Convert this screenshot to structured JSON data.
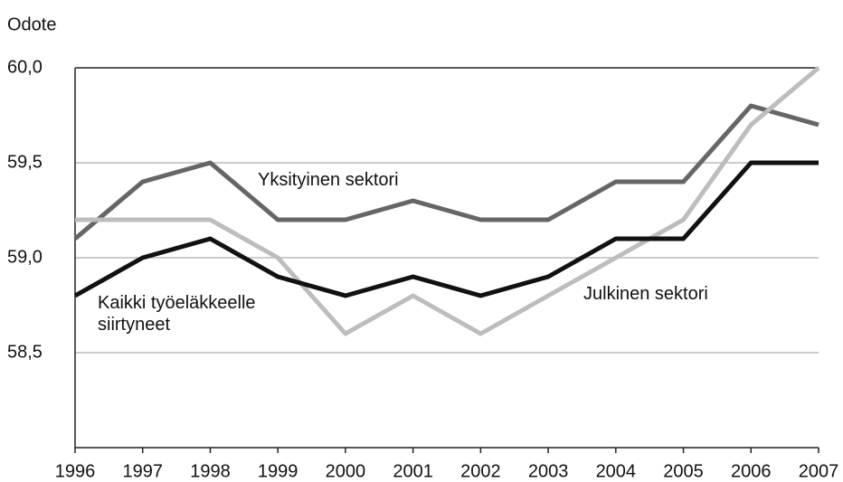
{
  "chart_data": {
    "type": "line",
    "y_label": "Odote",
    "categories": [
      "1996",
      "1997",
      "1998",
      "1999",
      "2000",
      "2001",
      "2002",
      "2003",
      "2004",
      "2005",
      "2006",
      "2007"
    ],
    "series": [
      {
        "name": "Yksityinen sektori",
        "color": "#666666",
        "values": [
          59.1,
          59.4,
          59.5,
          59.2,
          59.2,
          59.3,
          59.2,
          59.2,
          59.4,
          59.4,
          59.8,
          59.7
        ]
      },
      {
        "name": "Julkinen sektori",
        "color": "#bdbdbd",
        "values": [
          59.2,
          59.2,
          59.2,
          59.0,
          58.6,
          58.8,
          58.6,
          58.8,
          59.0,
          59.2,
          59.7,
          60.0
        ]
      },
      {
        "name": "Kaikki työeläkkeelle siirtyneet",
        "color": "#111111",
        "values": [
          58.8,
          59.0,
          59.1,
          58.9,
          58.8,
          58.9,
          58.8,
          58.9,
          59.1,
          59.1,
          59.5,
          59.5
        ]
      }
    ],
    "ylim": [
      58,
      60
    ],
    "yticks": [
      {
        "value": 58.5,
        "label": "58,5"
      },
      {
        "value": 59,
        "label": "59,0"
      },
      {
        "value": 59.5,
        "label": "59,5"
      },
      {
        "value": 60,
        "label": "60,0"
      }
    ],
    "grid": true
  }
}
